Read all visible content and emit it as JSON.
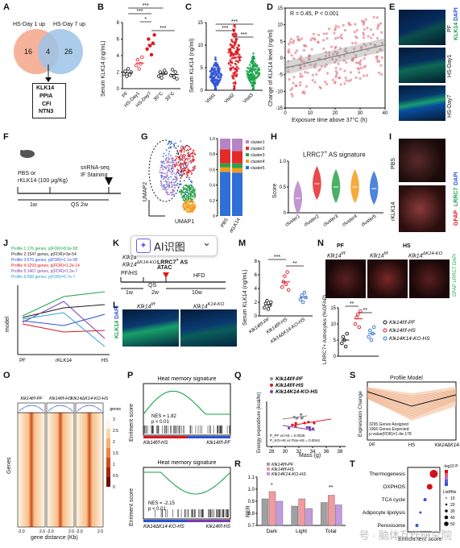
{
  "panel_labels": [
    "A",
    "B",
    "C",
    "D",
    "E",
    "F",
    "G",
    "H",
    "I",
    "J",
    "K",
    "L",
    "M",
    "N",
    "O",
    "P",
    "Q",
    "R",
    "S",
    "T"
  ],
  "A": {
    "set1": "HS-Day 1 up",
    "set2": "HS-Day 7 up",
    "only1": "16",
    "both": "4",
    "only2": "26",
    "genes": [
      "KLK14",
      "PPIA",
      "CFI",
      "NTN3"
    ],
    "color1": "#f5a58a",
    "color2": "#9cc3e6"
  },
  "B": {
    "ylabel": "Serum KLK14 (ng/mL)",
    "sig": [
      "***",
      "*",
      "***",
      "***"
    ],
    "categories": [
      "PF",
      "HS-Day1",
      "HS-Day7",
      "30°C",
      "33°C"
    ],
    "chart_data": {
      "type": "scatter",
      "categories": [
        "PF",
        "HS-Day1",
        "HS-Day7",
        "30°C",
        "33°C"
      ],
      "values": [
        [
          1.8,
          2.1,
          1.5,
          2.4,
          1.7,
          2.0
        ],
        [
          2.8,
          3.5,
          2.4,
          3.0,
          3.8
        ],
        [
          4.8,
          6.0,
          5.2,
          4.1,
          5.5,
          6.5
        ],
        [
          1.5,
          2.0,
          1.3,
          1.8,
          2.2,
          1.9
        ],
        [
          1.6,
          2.3,
          1.4,
          2.0,
          1.2
        ]
      ],
      "ylim": [
        0,
        8
      ]
    },
    "yticks": [
      "0",
      "2",
      "4",
      "6",
      "8"
    ]
  },
  "C": {
    "ylabel": "Serum KLK14 (ng/ml)",
    "sig": [
      "***",
      "***",
      "***"
    ],
    "categories": [
      "Visit1",
      "Visit2",
      "Visit3"
    ],
    "colors": [
      "#2f52d6",
      "#e0151d",
      "#1aa34a"
    ],
    "yticks": [
      "0",
      "5",
      "10",
      "15"
    ],
    "chart_data": {
      "type": "scatter",
      "categories": [
        "Visit1",
        "Visit2",
        "Visit3"
      ],
      "center": [
        3.5,
        7.5,
        4.0
      ],
      "ylim": [
        0,
        15
      ]
    }
  },
  "D": {
    "ylabel": "Change of KLK14 level (ng/ml)",
    "xlabel": "Exposure time above 37°C (h)",
    "annotation": "R = 0.45, P < 0.001",
    "xticks": [
      "0",
      "10",
      "20",
      "30",
      "40"
    ],
    "yticks": [
      "-15",
      "-10",
      "-5",
      "0",
      "5",
      "10",
      "15"
    ],
    "chart_data": {
      "type": "scatter",
      "xlim": [
        0,
        40
      ],
      "ylim": [
        -15,
        15
      ],
      "trend": [
        [
          0,
          -3
        ],
        [
          40,
          4
        ]
      ]
    }
  },
  "E": {
    "legend_a": "KLK14",
    "legend_b": "DAPI",
    "rows": [
      "PF",
      "HS-Day1",
      "HS-Day7"
    ]
  },
  "F": {
    "animal_label": "PBS or\nrKLK14 (100 μg/Kg)",
    "left_label": "PBS or",
    "left_label2": "rKLK14 (100 μg/Kg)",
    "right_label": "snRNA-seq",
    "right_label2": "IF Staining",
    "t1": "1w",
    "t2": "QS 2w"
  },
  "G": {
    "ylabel": "UMAP2",
    "xlabel": "UMAP1",
    "bar_xlabels": [
      "PBS",
      "rKLK14"
    ],
    "clusters": [
      "cluster1",
      "cluster2",
      "cluster3",
      "cluster4",
      "cluster5"
    ],
    "cluster_colors": [
      "#b784c6",
      "#e52a2a",
      "#2aa34a",
      "#f39c1e",
      "#2f6fd6"
    ],
    "yticks": [
      "0",
      "0.2",
      "0.4",
      "0.6",
      "0.8",
      "1.0"
    ],
    "chart_data": {
      "type": "bar",
      "categories": [
        "PBS",
        "rKLK14"
      ],
      "series": [
        {
          "name": "cluster1",
          "values": [
            0.14,
            0.16
          ]
        },
        {
          "name": "cluster2",
          "values": [
            0.18,
            0.16
          ]
        },
        {
          "name": "cluster3",
          "values": [
            0.05,
            0.06
          ]
        },
        {
          "name": "cluster4",
          "values": [
            0.06,
            0.06
          ]
        },
        {
          "name": "cluster5",
          "values": [
            0.57,
            0.56
          ]
        }
      ]
    }
  },
  "H": {
    "title_prefix": "LRRC7",
    "title_sup": "+",
    "title_suffix": " AS signature",
    "ylabel": "Score",
    "xlabels": [
      "cluster1",
      "cluster2",
      "cluster3",
      "cluster4",
      "cluster5"
    ],
    "colors": [
      "#b784c6",
      "#e52a2a",
      "#2aa34a",
      "#f39c1e",
      "#2f6fd6"
    ],
    "yticks": [
      "0",
      "0.5",
      "1.0"
    ]
  },
  "I": {
    "legend_a": "GFAP",
    "legend_b": "LRRC7",
    "legend_c": "DAPI",
    "rows": [
      "PBS",
      "rKLK14"
    ]
  },
  "J": {
    "ylabel": "model",
    "xlabels": [
      "PF",
      "rKLK14",
      "HS"
    ],
    "profiles": [
      "Profile 1:176 genes, p(FDR)=8.6e-58",
      "Profile 2:1547 genes, p(FDR)=3e-54",
      "Profile 3:576 genes, p(FDR)=1.1e-08",
      "Profile 4:1293 genes, p(FDR)=1.2e-14",
      "Profile 5:1467 genes, p(FDR)=1.2e-7",
      "Profile 6:598 genes, p(FDR)=6.7e-7"
    ],
    "profile_colors": [
      "#1aa34a",
      "#1a1a1a",
      "#2f52d6",
      "#e0151d",
      "#7a3fb0",
      "#2a9fd6"
    ]
  },
  "K": {
    "line1": "Klk14",
    "line1sup": "f/f",
    "line2": "Klk14",
    "line2sup": "ΔK14-KO",
    "lbl_pfhs": "PF/HS",
    "lbl_lrrc": "LRRC7",
    "lbl_lrrc_sup": "+",
    "lbl_lrrc2": " AS",
    "lbl_atac": "ATAC",
    "lbl_hfd": "HFD",
    "t1": "1w",
    "t2": "QS",
    "t3": "2w",
    "t4": "10w"
  },
  "ai_badge": {
    "text": "AI识图",
    "chevron": "⌄"
  },
  "L": {
    "left": "Klk14",
    "left_sup": "f/f",
    "right": "Klk14",
    "right_sup": "K14-KO",
    "side_a": "KLK14",
    "side_b": "DAPI"
  },
  "M": {
    "ylabel": "Serum KLK14 (ng/mL)",
    "sig": [
      "***",
      "**"
    ],
    "yticks": [
      "0",
      "2",
      "4",
      "6",
      "8"
    ],
    "categories": [
      "Klk14f/f-PF",
      "Klk14f/f-HS",
      "Klk14ΔK14-KO-HS"
    ],
    "colors": [
      "#1a1a1a",
      "#e0151d",
      "#2f6fd6"
    ],
    "chart_data": {
      "type": "scatter",
      "categories": [
        "Klk14f/f-PF",
        "Klk14f/f-HS",
        "Klk14ΔK14-KO-HS"
      ],
      "values": [
        [
          1.2,
          1.8,
          2.2,
          1.0,
          1.5,
          2.0
        ],
        [
          4.2,
          5.0,
          5.8,
          4.6,
          6.4,
          3.8
        ],
        [
          2.4,
          3.0,
          2.0,
          3.4,
          2.7
        ]
      ],
      "ylim": [
        0,
        8
      ]
    }
  },
  "N": {
    "top_left": "PF",
    "top_right": "HS",
    "sub1": "Klk14",
    "sub1_sup": "f/f",
    "sub2": "Klk14",
    "sub2_sup": "f/f",
    "sub3": "Klk14",
    "sub3_sup": "ΔK14-KO",
    "legend_side": "GFAP LRRC7 DAPI",
    "ylabel": "LRRC7+ Astrocytes (%GFAP)",
    "sig": [
      "**",
      "**"
    ],
    "yticks": [
      "0",
      "5",
      "10",
      "15"
    ],
    "legend": [
      "Klk14f/f-PF",
      "Klk14f/f-HS",
      "Klk14K14-KO-HS"
    ],
    "chart_data": {
      "type": "scatter",
      "categories": [
        "Klk14f/f-PF",
        "Klk14f/f-HS",
        "Klk14ΔK14-KO-HS"
      ],
      "values": [
        [
          4,
          6,
          5,
          3,
          7
        ],
        [
          10,
          12,
          13,
          9,
          14
        ],
        [
          6,
          8,
          5,
          7,
          9
        ]
      ],
      "ylim": [
        0,
        15
      ]
    }
  },
  "O": {
    "cols": [
      "Klk14f/f-PF",
      "Klk14f/f-HS",
      "Klk14ΔK14-KO-HS"
    ],
    "ylabel": "Genes",
    "xlabel": "gene distance (Kb)",
    "xticks": [
      "-2.0",
      "2.0"
    ],
    "genes_label": "genes",
    "scale": [
      "3",
      "2.5",
      "2",
      "1.5",
      "1",
      "0.5",
      "0"
    ]
  },
  "P": {
    "title": "Heat memory signature",
    "ylabel": "Enriment score",
    "top": {
      "nes": "NES = 1.82",
      "p": "p < 0.01",
      "left": "Klk14f/f-HS",
      "right": "Klk14f/f-PF"
    },
    "bottom": {
      "nes": "NES = -2.15",
      "p": "p < 0.01",
      "left": "Klk14ΔK14-KO-HS",
      "right": "Klk14f/f-HS"
    }
  },
  "Q": {
    "legend": [
      "Klk14f/f-PF",
      "Klk14f/f-HS",
      "Klk14K14-KO-HS"
    ],
    "ylabel": "Energy expenditure (kcal/hr)",
    "xlabel": "Mass (g)",
    "xticks": [
      "28",
      "30",
      "32",
      "34",
      "36",
      "38"
    ],
    "stats": [
      "P_PF vs HS = 0.0026",
      "P_KO-HS vs Flox-HS = 0.0044"
    ],
    "colors": [
      "#8a8a8a",
      "#e0151d",
      "#7a3fb0"
    ]
  },
  "R": {
    "legend": [
      "Klk14f/f-PF",
      "Klk14f/f-HS",
      "Klk14K14-KO-HS"
    ],
    "ylabel": "RER",
    "xlabels": [
      "Dark",
      "Light",
      "Total"
    ],
    "sig": [
      "*",
      "**"
    ],
    "yticks": [
      "0.7",
      "0.8",
      "0.9",
      "1.0",
      "1.1"
    ],
    "colors": [
      "#a0a0a0",
      "#f39aa0",
      "#c39ae0"
    ],
    "chart_data": {
      "type": "bar",
      "categories": [
        "Dark",
        "Light",
        "Total"
      ],
      "series": [
        {
          "values": [
            0.92,
            0.86,
            0.89
          ]
        },
        {
          "values": [
            0.98,
            0.92,
            0.95
          ]
        },
        {
          "values": [
            0.9,
            0.84,
            0.87
          ]
        }
      ],
      "ylim": [
        0.7,
        1.1
      ]
    }
  },
  "S": {
    "title": "Profile Model",
    "ylabel": "Expression Change",
    "xlabels": [
      "PF",
      "HS",
      "Klk14ΔK14-KO"
    ],
    "note": [
      "3295 Genes Assigned",
      "1966 Genes Expected",
      "p-value(FDR)=1.4e-178"
    ]
  },
  "T": {
    "xlabel": "Enrichment score",
    "terms": [
      "Thermogenesis",
      "OXPHOS",
      "TCA cycle",
      "Adipocyte lipolysis",
      "Peroxisome"
    ],
    "legend1": "-log10 P",
    "legend2": "ListHits",
    "hits": [
      "10",
      "20",
      "30",
      "40",
      "50"
    ],
    "chart_data": {
      "type": "scatter",
      "categories": [
        "Thermogenesis",
        "OXPHOS",
        "TCA cycle",
        "Adipocyte lipolysis",
        "Peroxisome"
      ],
      "values": [
        0.45,
        0.38,
        0.3,
        0.22,
        0.16
      ]
    }
  },
  "watermark": "号 · 脑体互作研究院"
}
